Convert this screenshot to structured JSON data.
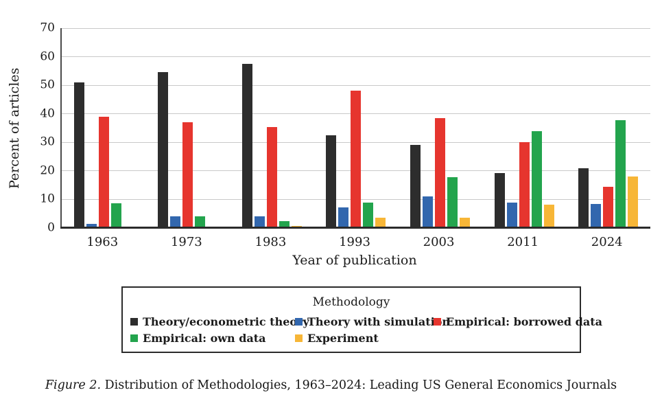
{
  "chart_data": {
    "type": "bar",
    "title": "",
    "categories": [
      "1963",
      "1973",
      "1983",
      "1993",
      "2003",
      "2011",
      "2024"
    ],
    "series": [
      {
        "name": "Theory/econometric theory",
        "color": "#2d2d2d",
        "values": [
          51,
          54.5,
          57.5,
          32.5,
          29,
          19.3,
          21
        ]
      },
      {
        "name": "Theory with simulation",
        "color": "#3267ae",
        "values": [
          1.5,
          4.2,
          4,
          7.3,
          11,
          8.8,
          8.5
        ]
      },
      {
        "name": "Empirical: borrowed data",
        "color": "#e6352e",
        "values": [
          39,
          37,
          35.3,
          48,
          38.5,
          30,
          14.5
        ]
      },
      {
        "name": "Empirical: own data",
        "color": "#23a44d",
        "values": [
          8.7,
          4,
          2.5,
          8.8,
          17.8,
          34,
          37.8
        ]
      },
      {
        "name": "Experiment",
        "color": "#f7b637",
        "values": [
          0,
          0,
          0.7,
          3.7,
          3.7,
          8.3,
          18.1
        ]
      }
    ],
    "xlabel": "Year of publication",
    "ylabel": "Percent of articles",
    "ylim": [
      0,
      70
    ],
    "yticks": [
      0,
      10,
      20,
      30,
      40,
      50,
      60,
      70
    ],
    "grid": "horizontal",
    "legend": {
      "title": "Methodology",
      "position": "boxed-below-chart",
      "rows": [
        [
          0,
          1,
          2
        ],
        [
          3,
          4
        ]
      ]
    }
  },
  "caption": {
    "label": "Figure 2.",
    "text": " Distribution of Methodologies, 1963–2024: Leading US General Economics Journals"
  },
  "style_colors": {
    "gridline": "#c9c9c9",
    "axis_line": "#2b2b2b",
    "legend_border": "#2b2b2b",
    "text": "#1b1b1b"
  }
}
